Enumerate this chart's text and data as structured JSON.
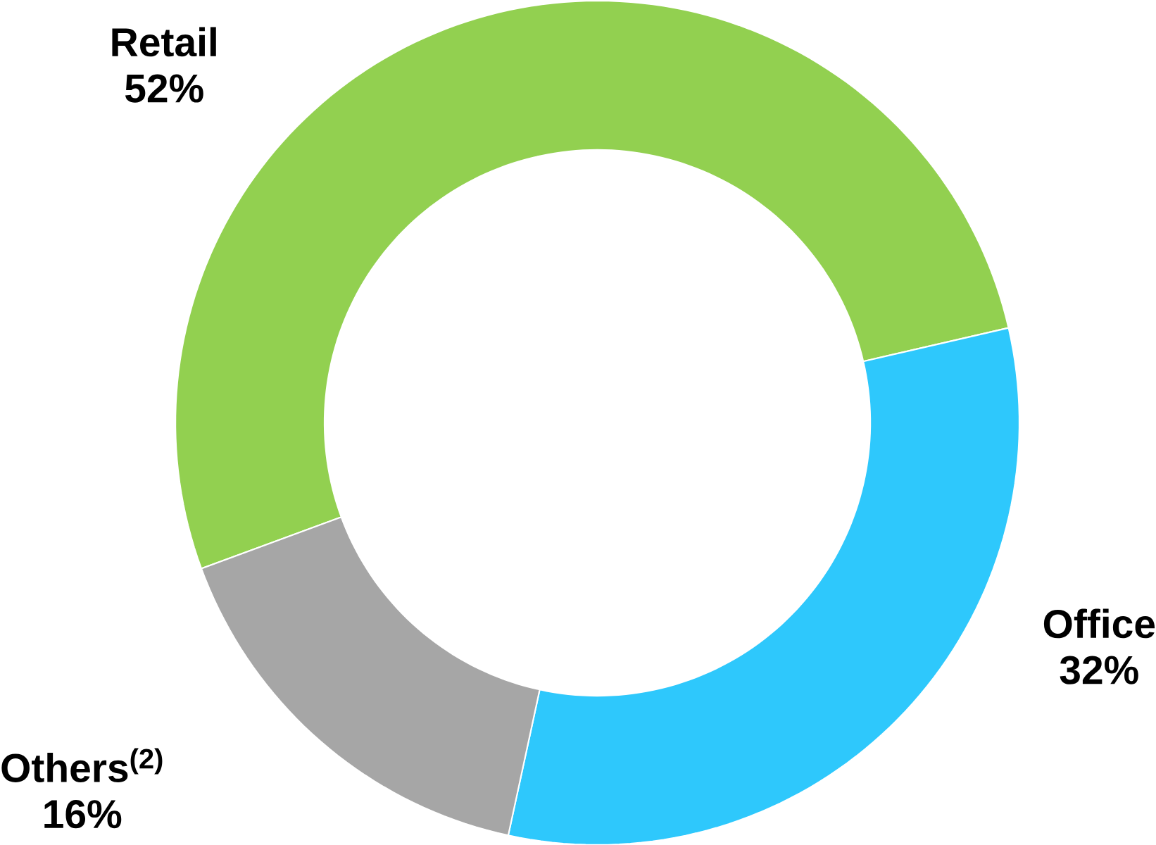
{
  "chart_data": {
    "type": "donut",
    "categories": [
      "Retail",
      "Office",
      "Others$^{(2)}$"
    ],
    "values": [
      52,
      32,
      16
    ],
    "value_labels": [
      "52%",
      "32%",
      "16%"
    ],
    "colors": [
      "#92d050",
      "#2ec8fc",
      "#a6a6a6"
    ]
  }
}
